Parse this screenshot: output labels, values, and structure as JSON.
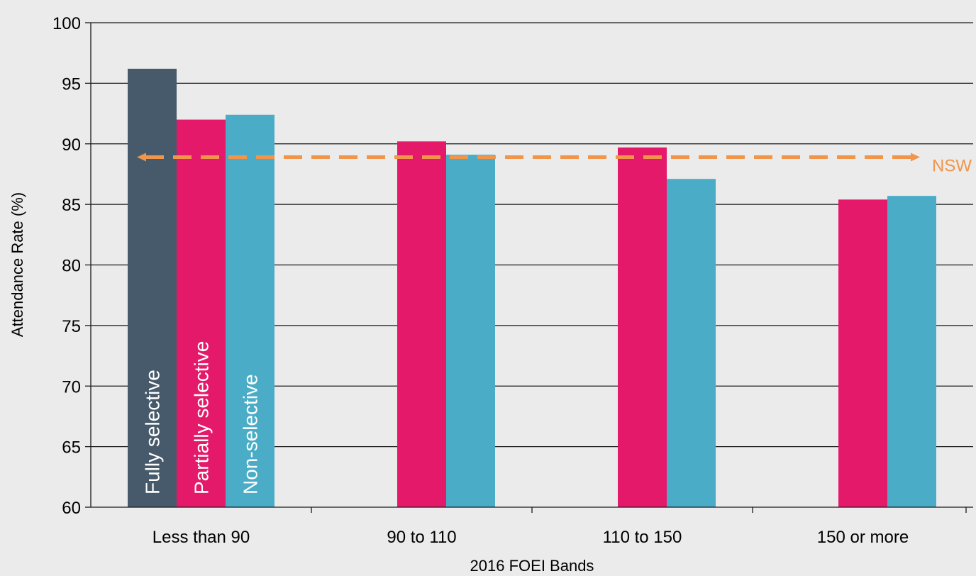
{
  "chart_data": {
    "type": "bar",
    "xlabel": "2016 FOEI Bands",
    "ylabel": "Attendance Rate (%)",
    "ylim": [
      60,
      100
    ],
    "yticks": [
      60,
      65,
      70,
      75,
      80,
      85,
      90,
      95,
      100
    ],
    "grid": true,
    "categories": [
      "Less than 90",
      "90 to 110",
      "110 to 150",
      "150 or more"
    ],
    "series": [
      {
        "name": "Fully selective",
        "color": "#475a6b",
        "values": [
          96.2,
          null,
          null,
          null
        ]
      },
      {
        "name": "Partially selective",
        "color": "#e5196a",
        "values": [
          92.0,
          90.2,
          89.7,
          85.4
        ]
      },
      {
        "name": "Non-selective",
        "color": "#4aacc6",
        "values": [
          92.4,
          89.1,
          87.1,
          85.7
        ]
      }
    ],
    "legend": "series names printed vertically inside the first group's bars",
    "reference_line": {
      "label": "NSW",
      "value": 88.9,
      "color": "#f0954a",
      "style": "dashed, arrows at both ends"
    }
  }
}
